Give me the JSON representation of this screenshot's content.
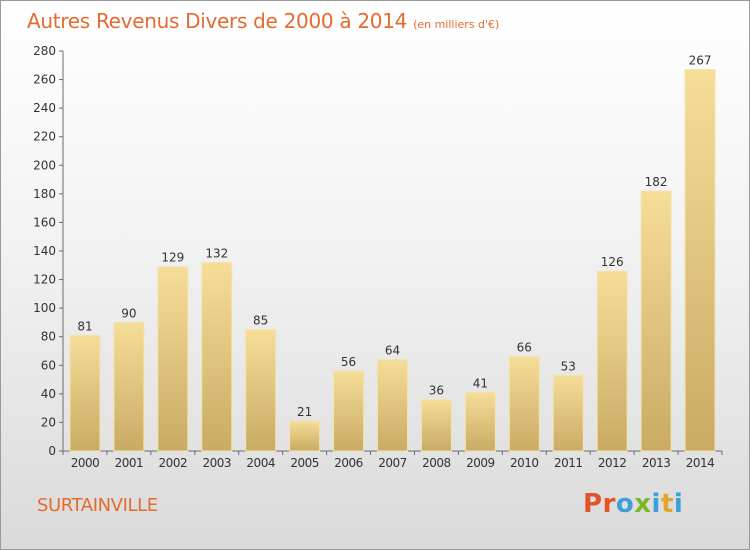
{
  "page": {
    "title": "Autres Revenus Divers de 2000 à 2014",
    "unit_note": "(en milliers d'€)",
    "commune": "SURTAINVILLE",
    "brand": "Proxiti"
  },
  "colors": {
    "accent": "#e46b2f",
    "bar_top": "#f6dd98",
    "bar_bottom": "#c9ab63",
    "brand_letters": [
      "#e4542b",
      "#e4542b",
      "#3b9fd8",
      "#7ab829",
      "#3b9fd8",
      "#e4a52b",
      "#3b9fd8"
    ]
  },
  "chart_data": {
    "type": "bar",
    "categories": [
      "2000",
      "2001",
      "2002",
      "2003",
      "2004",
      "2005",
      "2006",
      "2007",
      "2008",
      "2009",
      "2010",
      "2011",
      "2012",
      "2013",
      "2014"
    ],
    "values": [
      81,
      90,
      129,
      132,
      85,
      21,
      56,
      64,
      36,
      41,
      66,
      53,
      126,
      182,
      267
    ],
    "ylim": [
      0,
      280
    ],
    "y_ticks": [
      0,
      20,
      40,
      60,
      80,
      100,
      120,
      140,
      160,
      180,
      200,
      220,
      240,
      260,
      280
    ],
    "grid": false,
    "data_labels": true
  }
}
